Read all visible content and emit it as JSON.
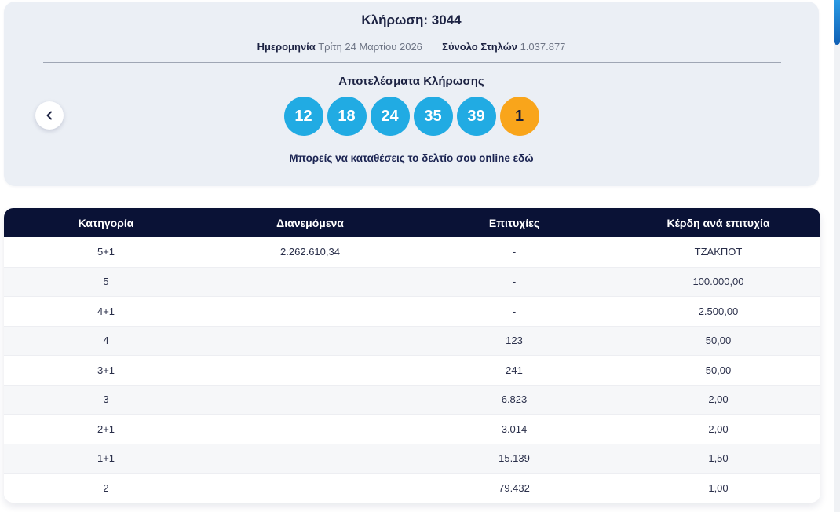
{
  "draw": {
    "title": "Κλήρωση: 3044",
    "date_label": "Ημερομηνία",
    "date_value": "Τρίτη 24 Μαρτίου 2026",
    "columns_label": "Σύνολο Στηλών",
    "columns_value": "1.037.877"
  },
  "results": {
    "heading": "Αποτελέσματα Κλήρωσης",
    "numbers": [
      "12",
      "18",
      "24",
      "35",
      "39"
    ],
    "joker": "1",
    "link_text": "Μπορείς να καταθέσεις το δελτίο σου online εδώ"
  },
  "table": {
    "headers": [
      "Κατηγορία",
      "Διανεμόμενα",
      "Επιτυχίες",
      "Κέρδη ανά επιτυχία"
    ],
    "rows": [
      [
        "5+1",
        "2.262.610,34",
        "-",
        "ΤΖΑΚΠΟΤ"
      ],
      [
        "5",
        "",
        "-",
        "100.000,00"
      ],
      [
        "4+1",
        "",
        "-",
        "2.500,00"
      ],
      [
        "4",
        "",
        "123",
        "50,00"
      ],
      [
        "3+1",
        "",
        "241",
        "50,00"
      ],
      [
        "3",
        "",
        "6.823",
        "2,00"
      ],
      [
        "2+1",
        "",
        "3.014",
        "2,00"
      ],
      [
        "1+1",
        "",
        "15.139",
        "1,50"
      ],
      [
        "2",
        "",
        "79.432",
        "1,00"
      ]
    ]
  },
  "colors": {
    "number_ball_blue": "#21abe3",
    "joker_ball_orange": "#f9a51b",
    "table_header_navy": "#0a1236",
    "navy_text": "#1d2343",
    "scrollbar_thumb_blue": "#1e7ad0",
    "card_background": "#ebeff5"
  }
}
